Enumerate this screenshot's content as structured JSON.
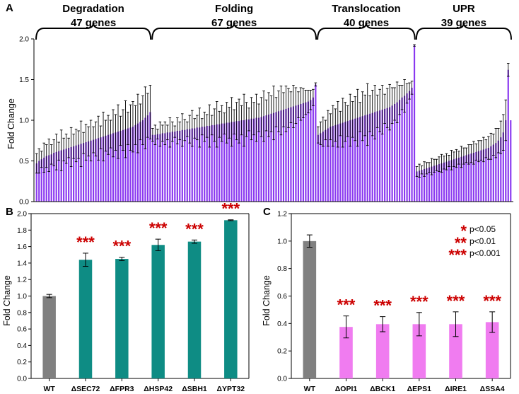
{
  "colors": {
    "purple": "#8a38f0",
    "teal": "#0e8c84",
    "gray": "#808080",
    "pink": "#f07cf0",
    "star": "#cc0000",
    "error": "#000000"
  },
  "chart_data": [
    {
      "panel": "A",
      "type": "bar",
      "ylabel": "Fold Change",
      "ylim": [
        0,
        2.0
      ],
      "yticks": [
        "0.0",
        "0.5",
        "1.0",
        "1.5",
        "2.0"
      ],
      "groups": [
        {
          "name": "Degradation",
          "count_label": "47 genes",
          "values": [
            0.47,
            0.5,
            0.52,
            0.54,
            0.56,
            0.57,
            0.58,
            0.6,
            0.61,
            0.62,
            0.63,
            0.64,
            0.65,
            0.66,
            0.67,
            0.68,
            0.69,
            0.7,
            0.71,
            0.72,
            0.73,
            0.74,
            0.75,
            0.76,
            0.77,
            0.78,
            0.79,
            0.8,
            0.81,
            0.82,
            0.83,
            0.84,
            0.85,
            0.86,
            0.87,
            0.88,
            0.89,
            0.9,
            0.91,
            0.92,
            0.94,
            0.96,
            0.98,
            1.0,
            1.03,
            1.06,
            1.1
          ],
          "errors": [
            0.12,
            0.15,
            0.1,
            0.18,
            0.14,
            0.2,
            0.12,
            0.16,
            0.22,
            0.11,
            0.25,
            0.14,
            0.18,
            0.12,
            0.24,
            0.15,
            0.2,
            0.17,
            0.28,
            0.13,
            0.22,
            0.18,
            0.25,
            0.16,
            0.21,
            0.27,
            0.14,
            0.3,
            0.19,
            0.24,
            0.17,
            0.29,
            0.22,
            0.33,
            0.18,
            0.25,
            0.35,
            0.2,
            0.28,
            0.31,
            0.24,
            0.36,
            0.22,
            0.3,
            0.38,
            0.27,
            0.33
          ]
        },
        {
          "name": "Folding",
          "count_label": "67 genes",
          "values": [
            0.82,
            0.82,
            0.83,
            0.83,
            0.84,
            0.84,
            0.85,
            0.85,
            0.86,
            0.86,
            0.87,
            0.87,
            0.88,
            0.88,
            0.89,
            0.89,
            0.9,
            0.9,
            0.91,
            0.91,
            0.92,
            0.92,
            0.93,
            0.93,
            0.94,
            0.94,
            0.95,
            0.95,
            0.96,
            0.96,
            0.97,
            0.97,
            0.98,
            0.98,
            0.99,
            0.99,
            1.0,
            1.0,
            1.01,
            1.01,
            1.02,
            1.02,
            1.03,
            1.03,
            1.04,
            1.05,
            1.06,
            1.07,
            1.08,
            1.09,
            1.1,
            1.11,
            1.12,
            1.13,
            1.14,
            1.15,
            1.16,
            1.17,
            1.18,
            1.19,
            1.2,
            1.21,
            1.22,
            1.23,
            1.25,
            1.28,
            1.44
          ],
          "errors": [
            0.08,
            0.12,
            0.06,
            0.15,
            0.1,
            0.14,
            0.09,
            0.18,
            0.12,
            0.07,
            0.16,
            0.11,
            0.2,
            0.13,
            0.09,
            0.17,
            0.22,
            0.12,
            0.15,
            0.24,
            0.1,
            0.18,
            0.14,
            0.26,
            0.12,
            0.2,
            0.28,
            0.16,
            0.22,
            0.13,
            0.25,
            0.19,
            0.3,
            0.15,
            0.23,
            0.27,
            0.18,
            0.32,
            0.21,
            0.14,
            0.26,
            0.2,
            0.29,
            0.17,
            0.24,
            0.31,
            0.19,
            0.27,
            0.22,
            0.33,
            0.18,
            0.25,
            0.3,
            0.21,
            0.28,
            0.24,
            0.19,
            0.26,
            0.22,
            0.16,
            0.2,
            0.18,
            0.15,
            0.14,
            0.12,
            0.1,
            0.02
          ]
        },
        {
          "name": "Translocation",
          "count_label": "40 genes",
          "values": [
            0.82,
            0.84,
            0.86,
            0.88,
            0.9,
            0.92,
            0.93,
            0.94,
            0.95,
            0.96,
            0.97,
            0.98,
            0.99,
            1.0,
            1.01,
            1.02,
            1.03,
            1.04,
            1.05,
            1.06,
            1.07,
            1.08,
            1.09,
            1.1,
            1.11,
            1.12,
            1.13,
            1.14,
            1.15,
            1.16,
            1.18,
            1.2,
            1.22,
            1.25,
            1.28,
            1.3,
            1.33,
            1.36,
            1.4,
            1.92
          ],
          "errors": [
            0.1,
            0.14,
            0.18,
            0.12,
            0.22,
            0.16,
            0.25,
            0.2,
            0.28,
            0.15,
            0.3,
            0.24,
            0.19,
            0.32,
            0.22,
            0.27,
            0.35,
            0.18,
            0.3,
            0.25,
            0.38,
            0.22,
            0.28,
            0.33,
            0.2,
            0.26,
            0.3,
            0.18,
            0.24,
            0.28,
            0.22,
            0.2,
            0.25,
            0.18,
            0.15,
            0.2,
            0.12,
            0.1,
            0.08,
            0.01
          ]
        },
        {
          "name": "UPR",
          "count_label": "39 genes",
          "values": [
            0.37,
            0.38,
            0.39,
            0.4,
            0.41,
            0.42,
            0.43,
            0.44,
            0.45,
            0.46,
            0.47,
            0.48,
            0.49,
            0.5,
            0.51,
            0.52,
            0.53,
            0.54,
            0.55,
            0.56,
            0.57,
            0.58,
            0.59,
            0.6,
            0.61,
            0.62,
            0.63,
            0.64,
            0.65,
            0.66,
            0.68,
            0.7,
            0.72,
            0.75,
            0.79,
            0.85,
            1.0,
            1.62,
            1.0
          ],
          "errors": [
            0.06,
            0.08,
            0.05,
            0.09,
            0.07,
            0.06,
            0.1,
            0.08,
            0.07,
            0.09,
            0.11,
            0.08,
            0.1,
            0.07,
            0.12,
            0.09,
            0.11,
            0.08,
            0.13,
            0.1,
            0.09,
            0.12,
            0.11,
            0.14,
            0.1,
            0.13,
            0.12,
            0.15,
            0.11,
            0.14,
            0.16,
            0.13,
            0.18,
            0.15,
            0.2,
            0.22,
            0.25,
            0.08,
            0.0
          ]
        }
      ]
    },
    {
      "panel": "B",
      "type": "bar",
      "ylabel": "Fold Change",
      "ylim": [
        0,
        2.0
      ],
      "yticks": [
        "0.0",
        "0.2",
        "0.4",
        "0.6",
        "0.8",
        "1.0",
        "1.2",
        "1.4",
        "1.6",
        "1.8",
        "2.0"
      ],
      "categories": [
        "WT",
        "ΔSEC72",
        "ΔFPR3",
        "ΔHSP42",
        "ΔSBH1",
        "ΔYPT32"
      ],
      "values": [
        1.0,
        1.44,
        1.45,
        1.62,
        1.66,
        1.92
      ],
      "errors": [
        0.02,
        0.08,
        0.02,
        0.07,
        0.02,
        0.005
      ],
      "significance": [
        "",
        "***",
        "***",
        "***",
        "***",
        "***"
      ]
    },
    {
      "panel": "C",
      "type": "bar",
      "ylabel": "Fold Change",
      "ylim": [
        0,
        1.2
      ],
      "yticks": [
        "0.0",
        "0.2",
        "0.4",
        "0.6",
        "0.8",
        "1.0",
        "1.2"
      ],
      "categories": [
        "WT",
        "ΔOPI1",
        "ΔBCK1",
        "ΔEPS1",
        "ΔIRE1",
        "ΔSSA4"
      ],
      "values": [
        1.0,
        0.375,
        0.395,
        0.395,
        0.395,
        0.41
      ],
      "errors": [
        0.045,
        0.08,
        0.055,
        0.085,
        0.09,
        0.075
      ],
      "significance": [
        "",
        "***",
        "***",
        "***",
        "***",
        "***"
      ],
      "legend": [
        {
          "stars": "*",
          "text": "p<0.05"
        },
        {
          "stars": "**",
          "text": "p<0.01"
        },
        {
          "stars": "***",
          "text": "p<0.001"
        }
      ]
    }
  ]
}
